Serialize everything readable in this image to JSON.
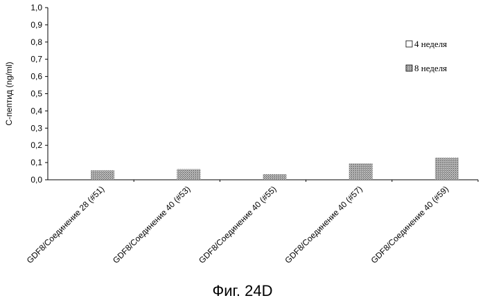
{
  "caption": "Фиг. 24D",
  "chart_data": {
    "type": "bar",
    "ylabel": "C-пептид (ng/ml)",
    "ylim": [
      0,
      1.0
    ],
    "yticks": [
      "0,0",
      "0,1",
      "0,2",
      "0,3",
      "0,4",
      "0,5",
      "0,6",
      "0,7",
      "0,8",
      "0,9",
      "1,0"
    ],
    "categories": [
      "GDF8/Соединение 28 (#51)",
      "GDF8/Соединение 40 (#53)",
      "GDF8/Соединение 40 (#55)",
      "GDF8/Соединение 40 (#57)",
      "GDF8/Соединение 40 (#59)"
    ],
    "series": [
      {
        "name": "4 неделя",
        "values": [
          0,
          0,
          0,
          0,
          0
        ],
        "color": "#ffffff"
      },
      {
        "name": "8 неделя",
        "values": [
          0.055,
          0.062,
          0.032,
          0.095,
          0.128
        ],
        "color": "#9a9a9a"
      }
    ],
    "legend": "right",
    "grid": false
  }
}
